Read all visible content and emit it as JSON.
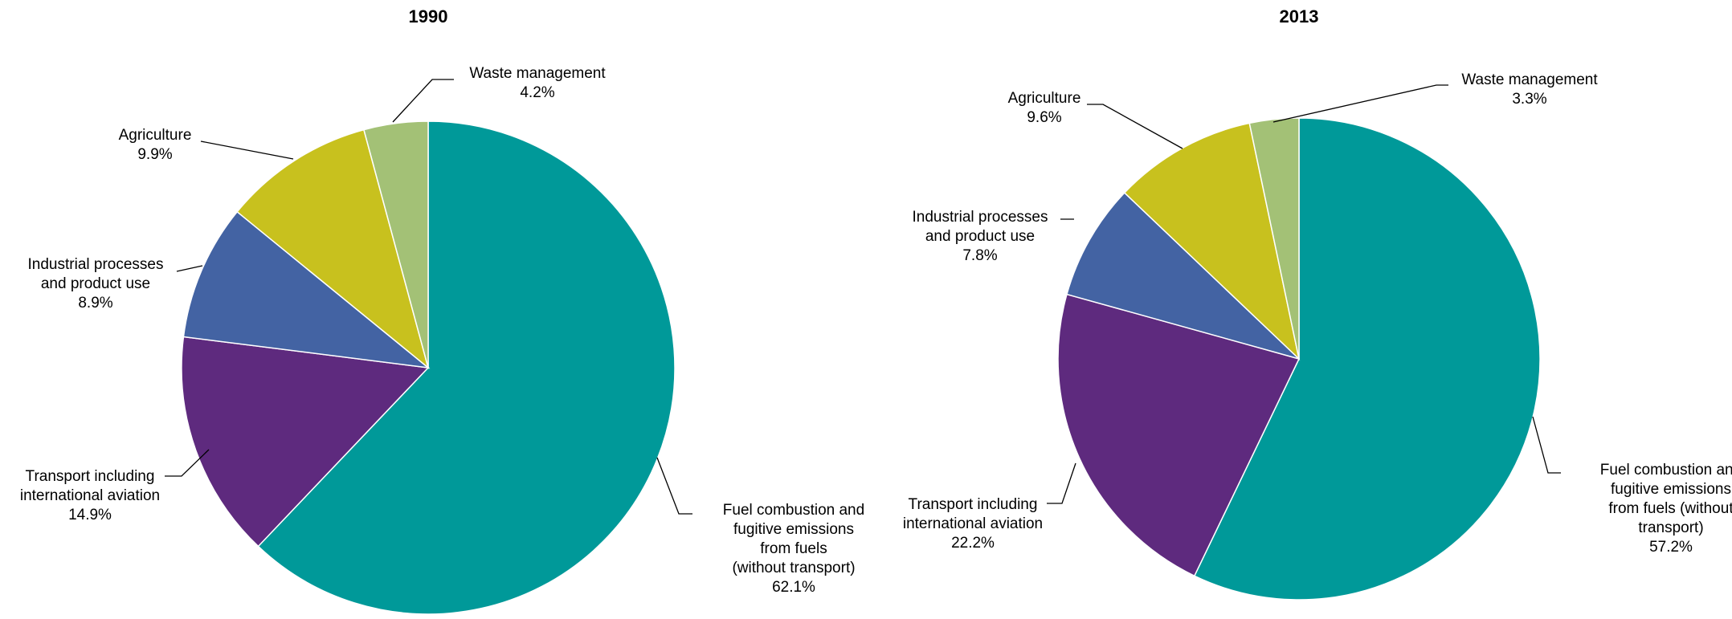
{
  "chart_data": [
    {
      "type": "pie",
      "title": "1990",
      "slices": [
        {
          "label": [
            "Fuel combustion and",
            "fugitive emissions",
            "from fuels",
            "(without transport)"
          ],
          "value_text": "62.1%",
          "value": 62.1,
          "color": "#009999"
        },
        {
          "label": [
            "Transport including",
            "international aviation"
          ],
          "value_text": "14.9%",
          "value": 14.9,
          "color": "#5E2A7E"
        },
        {
          "label": [
            "Industrial processes",
            "and product use"
          ],
          "value_text": "8.9%",
          "value": 8.9,
          "color": "#4363A3"
        },
        {
          "label": [
            "Agriculture"
          ],
          "value_text": "9.9%",
          "value": 9.9,
          "color": "#C8C11E"
        },
        {
          "label": [
            "Waste management"
          ],
          "value_text": "4.2%",
          "value": 4.2,
          "color": "#A3C176"
        }
      ]
    },
    {
      "type": "pie",
      "title": "2013",
      "slices": [
        {
          "label": [
            "Fuel combustion and",
            "fugitive emissions",
            "from fuels (without",
            "transport)"
          ],
          "value_text": "57.2%",
          "value": 57.2,
          "color": "#009999"
        },
        {
          "label": [
            "Transport including",
            "international aviation"
          ],
          "value_text": "22.2%",
          "value": 22.2,
          "color": "#5E2A7E"
        },
        {
          "label": [
            "Industrial processes",
            "and product use"
          ],
          "value_text": "7.8%",
          "value": 7.8,
          "color": "#4363A3"
        },
        {
          "label": [
            "Agriculture"
          ],
          "value_text": "9.6%",
          "value": 9.6,
          "color": "#C8C11E"
        },
        {
          "label": [
            "Waste management"
          ],
          "value_text": "3.3%",
          "value": 3.3,
          "color": "#A3C176"
        }
      ]
    }
  ]
}
